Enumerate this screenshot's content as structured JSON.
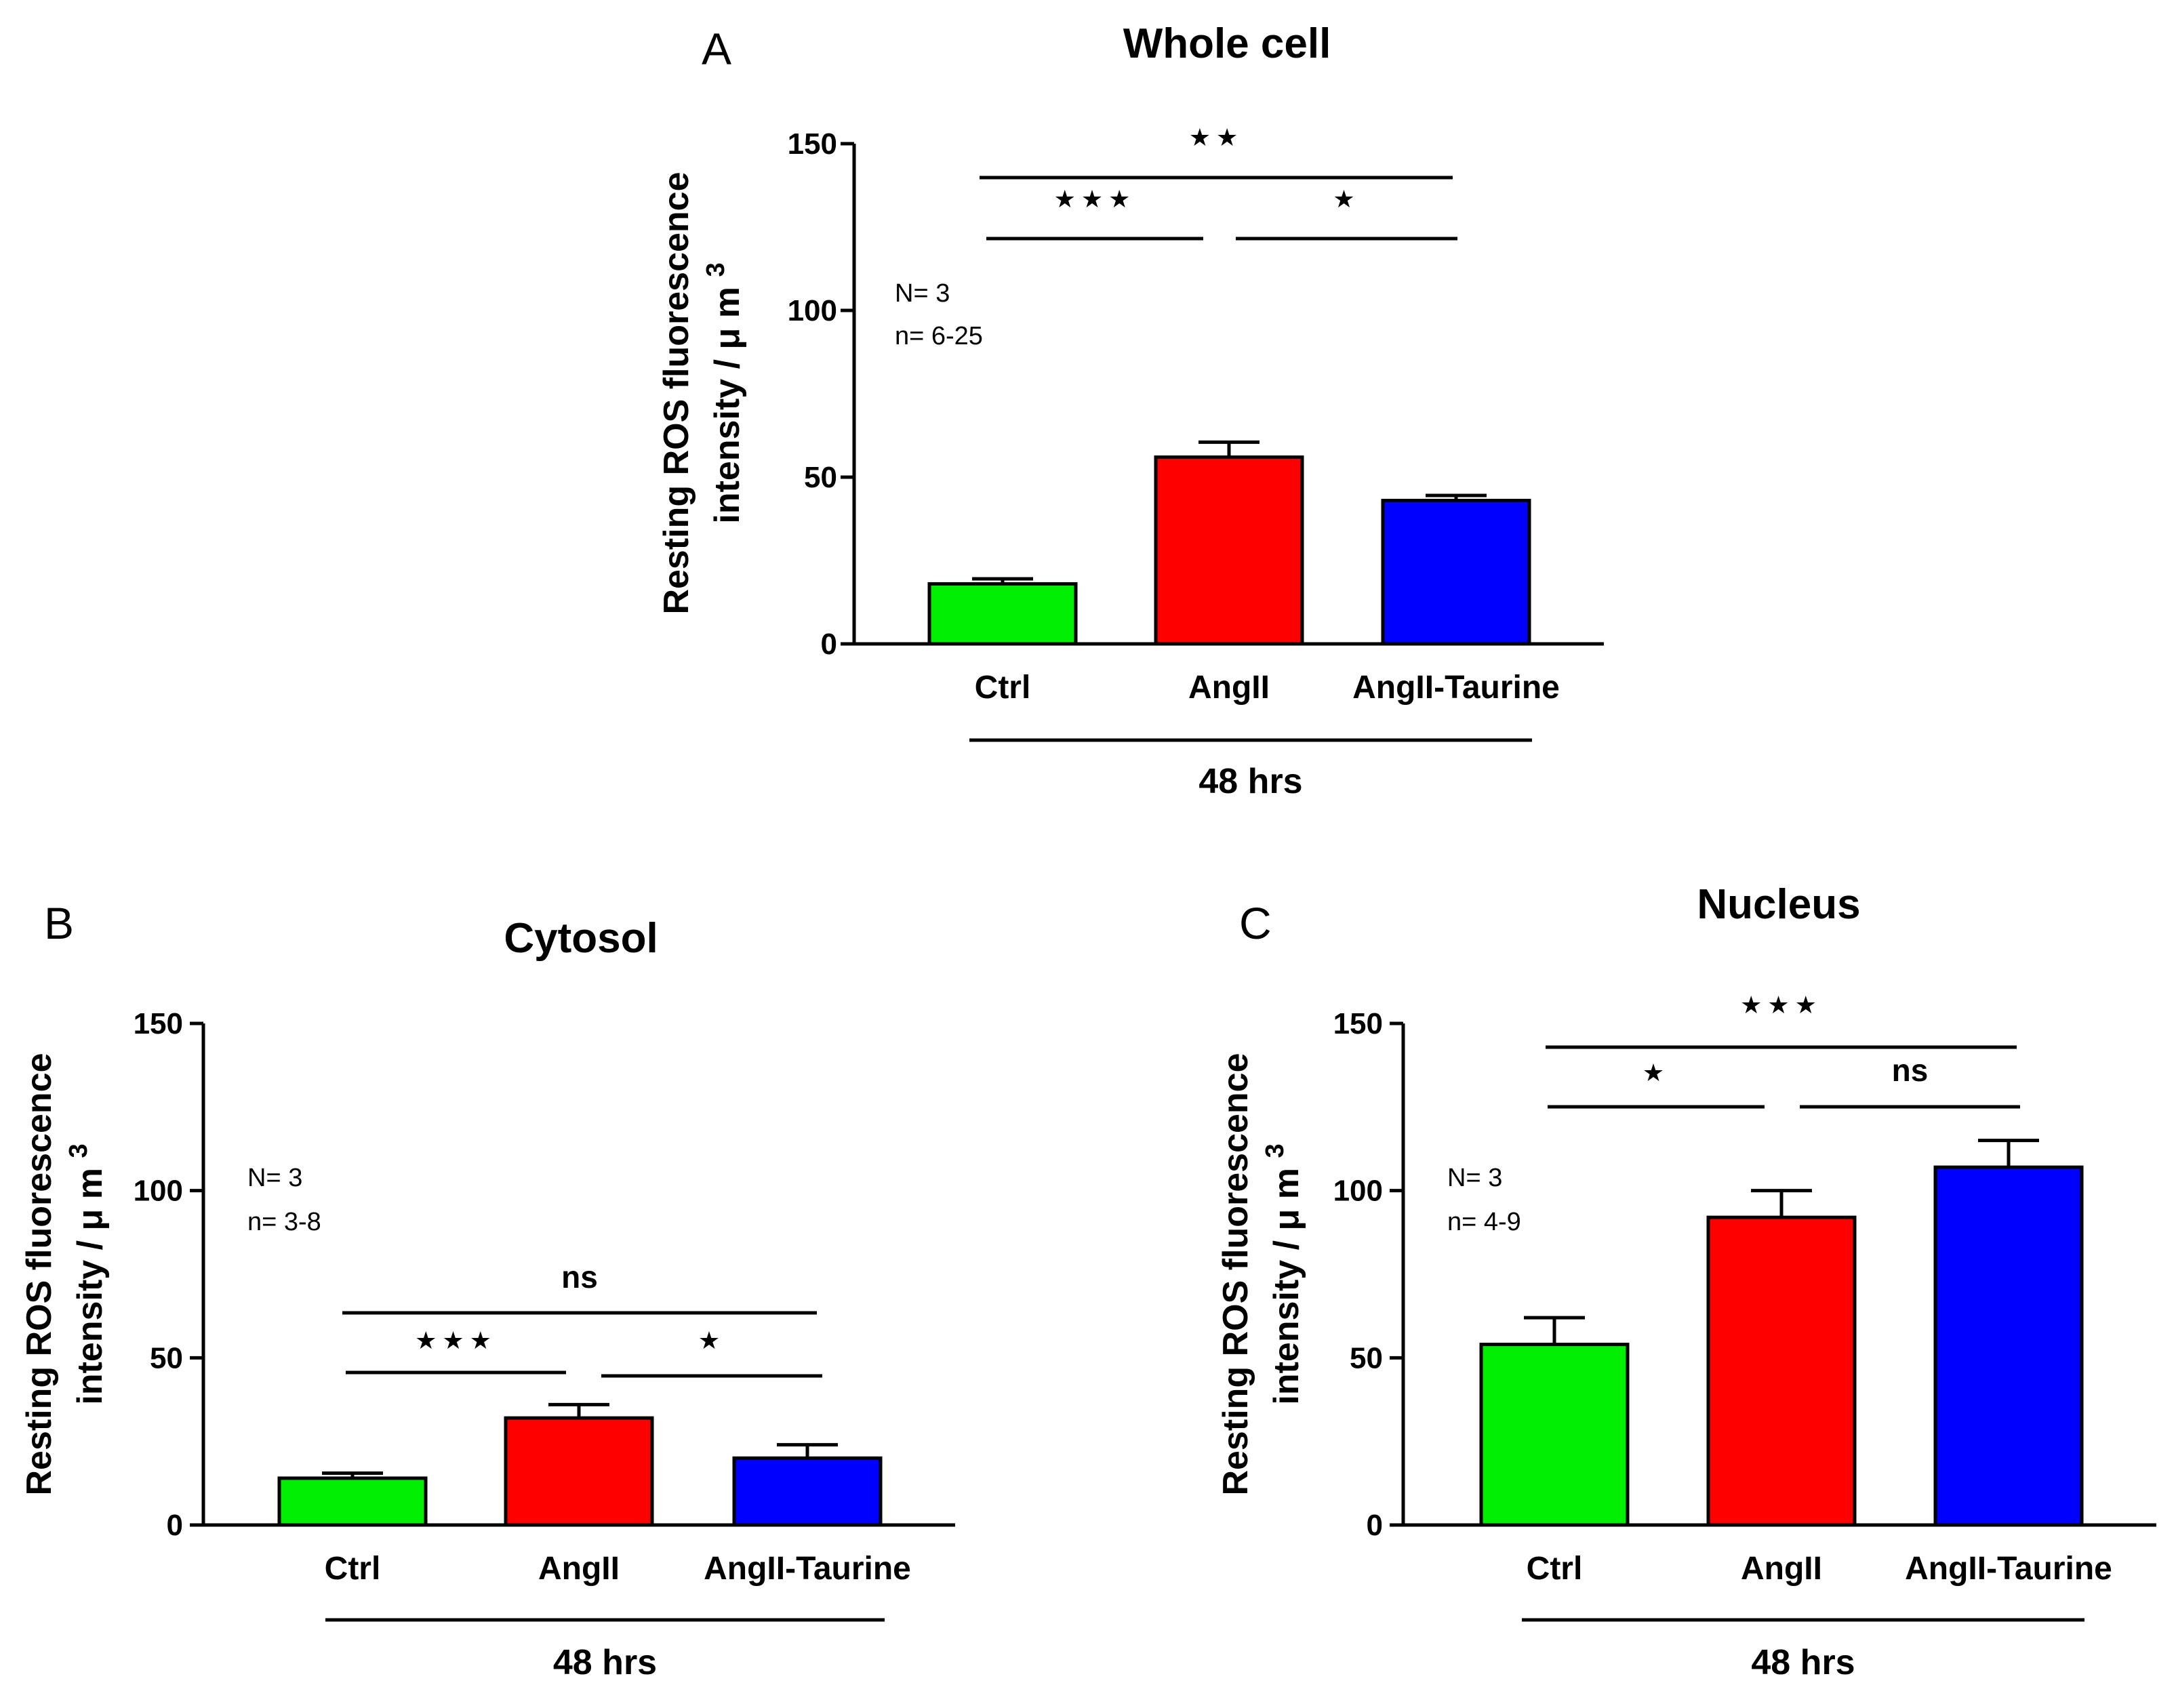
{
  "chart_data": [
    {
      "type": "bar",
      "panel_label": "A",
      "title": "Whole cell",
      "ylabel_line1": "Resting ROS fluorescence",
      "ylabel_line2": "intensity / μ m",
      "ylabel_sup": "3",
      "ylim": [
        0,
        150
      ],
      "yticks": [
        0,
        50,
        100,
        150
      ],
      "categories": [
        "Ctrl",
        "AngII",
        "AngII-Taurine"
      ],
      "values": [
        18,
        56,
        43
      ],
      "errors": [
        1.5,
        4.5,
        1.5
      ],
      "colors": [
        "#00ee00",
        "#ff0000",
        "#0000ff"
      ],
      "group_label": "48 hrs",
      "annotation": [
        "N= 3",
        "n= 6-25"
      ],
      "significance": [
        {
          "from": 0,
          "to": 1,
          "label": "★★★"
        },
        {
          "from": 1,
          "to": 2,
          "label": "★"
        },
        {
          "from": 0,
          "to": 2,
          "label": "★★"
        }
      ]
    },
    {
      "type": "bar",
      "panel_label": "B",
      "title": "Cytosol",
      "ylabel_line1": "Resting ROS fluorescence",
      "ylabel_line2": "intensity / μ m",
      "ylabel_sup": "3",
      "ylim": [
        0,
        150
      ],
      "yticks": [
        0,
        50,
        100,
        150
      ],
      "categories": [
        "Ctrl",
        "AngII",
        "AngII-Taurine"
      ],
      "values": [
        14,
        32,
        20
      ],
      "errors": [
        1.5,
        4,
        4
      ],
      "colors": [
        "#00ee00",
        "#ff0000",
        "#0000ff"
      ],
      "group_label": "48 hrs",
      "annotation": [
        "N= 3",
        "n= 3-8"
      ],
      "significance": [
        {
          "from": 0,
          "to": 1,
          "label": "★★★"
        },
        {
          "from": 1,
          "to": 2,
          "label": "★"
        },
        {
          "from": 0,
          "to": 2,
          "label": "ns"
        }
      ]
    },
    {
      "type": "bar",
      "panel_label": "C",
      "title": "Nucleus",
      "ylabel_line1": "Resting ROS fluorescence",
      "ylabel_line2": "intensity / μ m",
      "ylabel_sup": "3",
      "ylim": [
        0,
        150
      ],
      "yticks": [
        0,
        50,
        100,
        150
      ],
      "categories": [
        "Ctrl",
        "AngII",
        "AngII-Taurine"
      ],
      "values": [
        54,
        92,
        107
      ],
      "errors": [
        8,
        8,
        8
      ],
      "colors": [
        "#00ee00",
        "#ff0000",
        "#0000ff"
      ],
      "group_label": "48 hrs",
      "annotation": [
        "N= 3",
        "n= 4-9"
      ],
      "significance": [
        {
          "from": 0,
          "to": 1,
          "label": "★"
        },
        {
          "from": 1,
          "to": 2,
          "label": "ns"
        },
        {
          "from": 0,
          "to": 2,
          "label": "★★★"
        }
      ]
    }
  ]
}
